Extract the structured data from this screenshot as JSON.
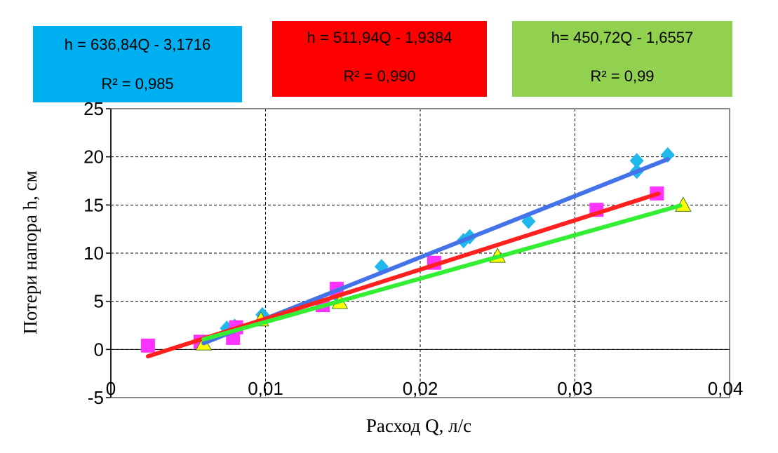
{
  "chart_data": {
    "type": "scatter",
    "xlabel": "Расход Q, л/с",
    "ylabel": "Потери напора h, см",
    "xlim": [
      0,
      0.04
    ],
    "ylim": [
      -5,
      25
    ],
    "x_ticks": [
      "0",
      "0,01",
      "0,02",
      "0,03",
      "0,04"
    ],
    "y_ticks": [
      "-5",
      "0",
      "5",
      "10",
      "15",
      "20",
      "25"
    ],
    "grid": true,
    "series": [
      {
        "name": "blue",
        "marker": "diamond",
        "color": "#1fb8ec",
        "points": [
          [
            0.0075,
            2.2
          ],
          [
            0.008,
            2.4
          ],
          [
            0.0098,
            3.6
          ],
          [
            0.0145,
            5.8
          ],
          [
            0.0175,
            8.6
          ],
          [
            0.0228,
            11.3
          ],
          [
            0.0232,
            11.7
          ],
          [
            0.027,
            13.3
          ],
          [
            0.034,
            18.5
          ],
          [
            0.034,
            19.6
          ],
          [
            0.036,
            20.2
          ]
        ],
        "trend": {
          "x": [
            0.006,
            0.036
          ],
          "y": [
            0.65,
            19.75
          ],
          "color": "#4472e8"
        },
        "equation": "h = 636,84Q - 3,1716",
        "r2": "R² = 0,985",
        "box_color": "#00b0f0"
      },
      {
        "name": "magenta",
        "marker": "square",
        "color": "#ff33ff",
        "points": [
          [
            0.0024,
            0.4
          ],
          [
            0.0058,
            0.8
          ],
          [
            0.0079,
            1.2
          ],
          [
            0.0081,
            2.3
          ],
          [
            0.0137,
            4.6
          ],
          [
            0.0146,
            6.3
          ],
          [
            0.0209,
            9.0
          ],
          [
            0.0314,
            14.5
          ],
          [
            0.0353,
            16.2
          ]
        ],
        "trend": {
          "x": [
            0.0024,
            0.0354
          ],
          "y": [
            -0.71,
            16.18
          ],
          "color": "#ff2020"
        },
        "equation": "h = 511,94Q - 1,9384",
        "r2": "R² = 0,990",
        "box_color": "#ff0000"
      },
      {
        "name": "yellow",
        "marker": "triangle",
        "color": "#ffff00",
        "points": [
          [
            0.006,
            0.6
          ],
          [
            0.0097,
            3.1
          ],
          [
            0.0148,
            4.9
          ],
          [
            0.025,
            9.7
          ],
          [
            0.037,
            15.0
          ]
        ],
        "trend": {
          "x": [
            0.006,
            0.0368
          ],
          "y": [
            1.05,
            14.93
          ],
          "color": "#33ee33"
        },
        "equation": "h= 450,72Q - 1,6557",
        "r2": "R² = 0,99",
        "box_color": "#92d050"
      }
    ]
  }
}
